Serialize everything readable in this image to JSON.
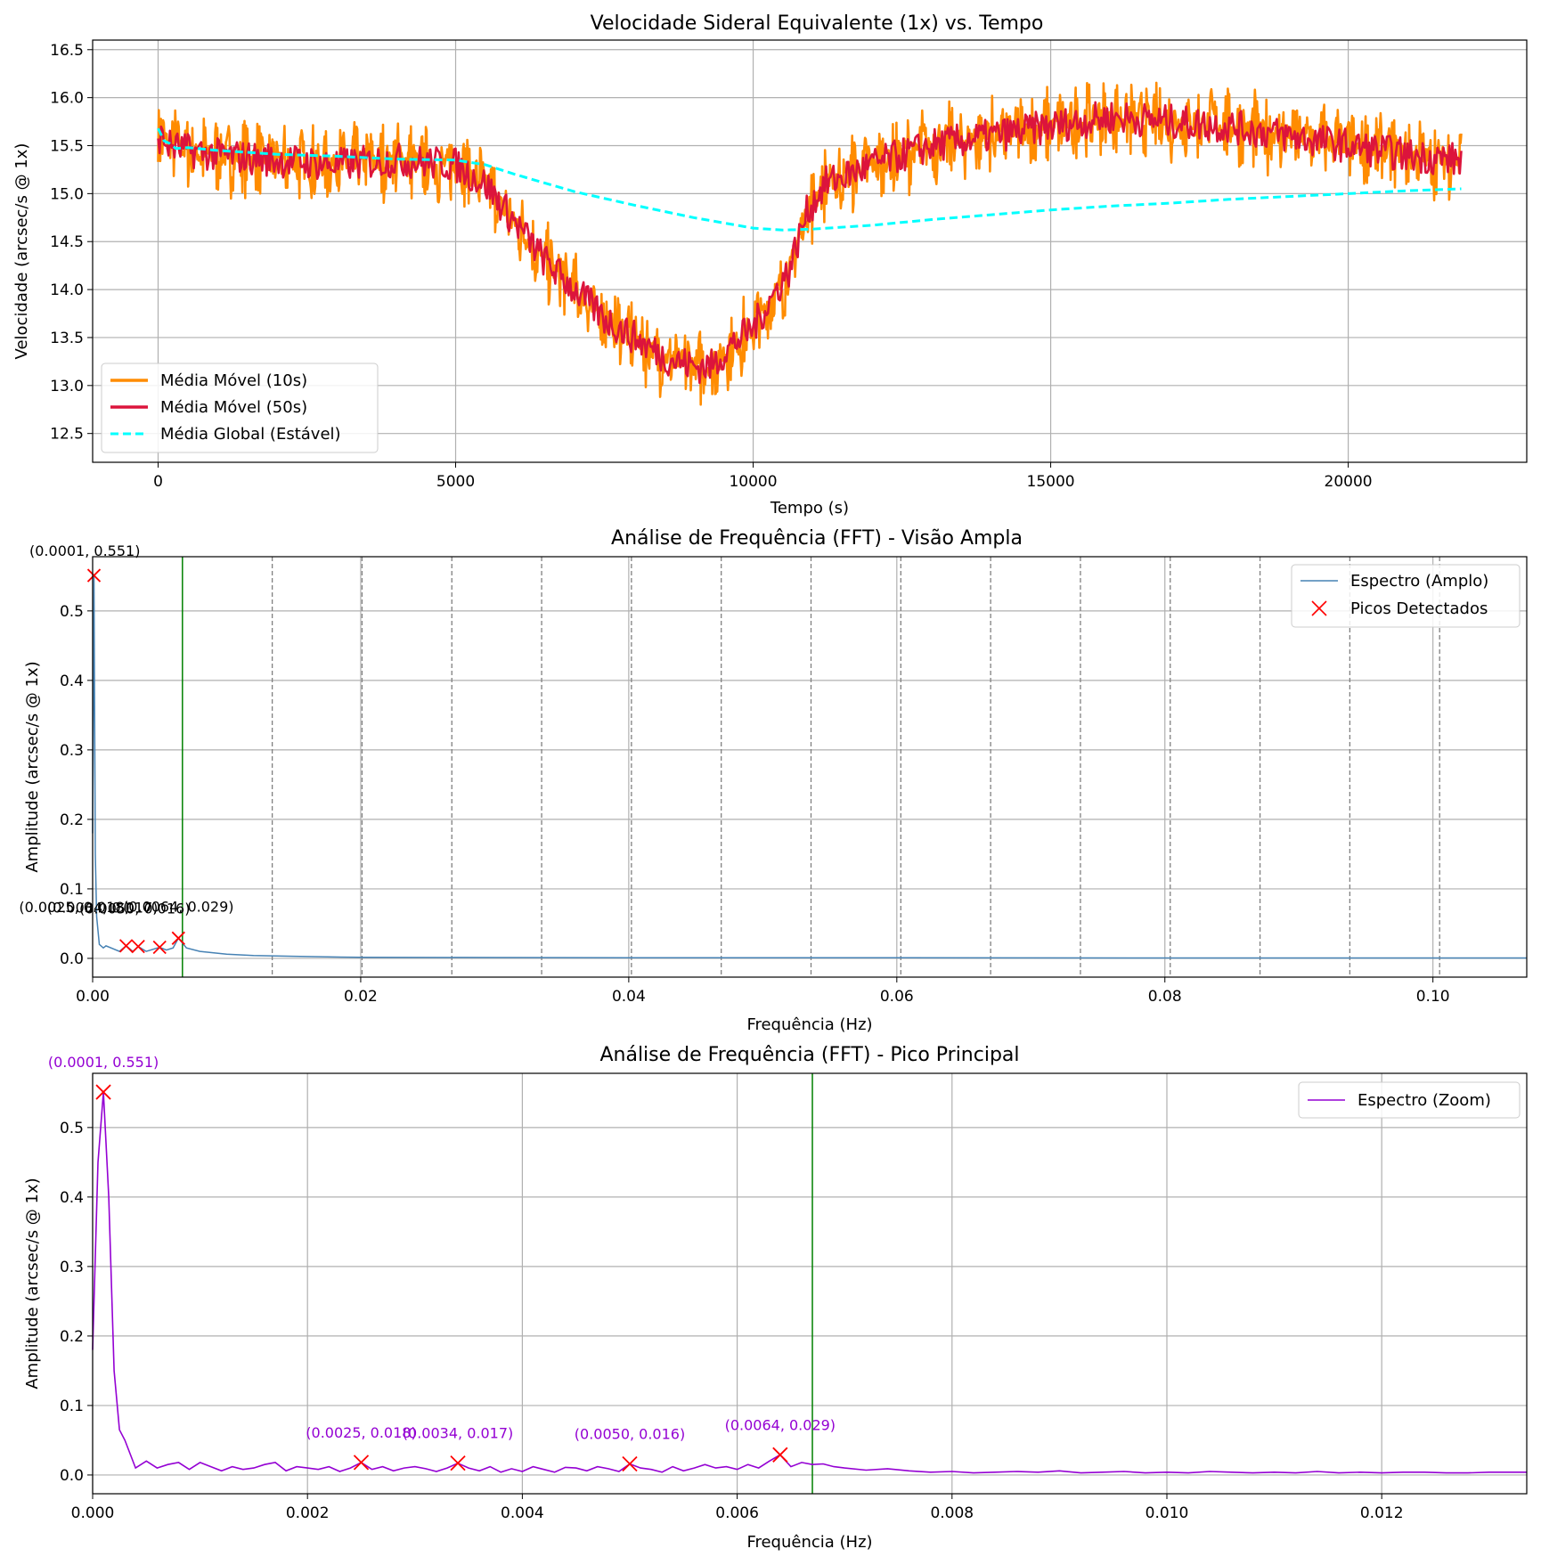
{
  "colors": {
    "ma10": "#ff8c00",
    "ma50": "#dc143c",
    "global": "#00ffff",
    "spectrum_wide": "#4682b4",
    "spectrum_zoom": "#9400d3",
    "peaks": "#ff0000",
    "green_line": "#008000",
    "dashed_lines": "#808080",
    "grid": "#b0b0b0",
    "annotation_wide": "#000000",
    "annotation_zoom": "#9400d3"
  },
  "chart_data": [
    {
      "type": "line",
      "title": "Velocidade Sideral Equivalente (1x) vs. Tempo",
      "xlabel": "Tempo (s)",
      "ylabel": "Velocidade (arcsec/s @ 1x)",
      "xlim": [
        -1100,
        23000
      ],
      "ylim": [
        12.2,
        16.6
      ],
      "xticks": [
        0,
        5000,
        10000,
        15000,
        20000
      ],
      "xtick_labels": [
        "0",
        "5000",
        "10000",
        "15000",
        "20000"
      ],
      "yticks": [
        12.5,
        13.0,
        13.5,
        14.0,
        14.5,
        15.0,
        15.5,
        16.0,
        16.5
      ],
      "ytick_labels": [
        "12.5",
        "13.0",
        "13.5",
        "14.0",
        "14.5",
        "15.0",
        "15.5",
        "16.0",
        "16.5"
      ],
      "grid": true,
      "legend_position": "lower-left",
      "trend": {
        "t": [
          0,
          200,
          500,
          1000,
          2000,
          3000,
          4000,
          5000,
          5500,
          6000,
          6500,
          7000,
          7500,
          8000,
          8500,
          9000,
          9300,
          9600,
          10000,
          10300,
          10600,
          10900,
          11200,
          12000,
          13000,
          14000,
          15000,
          16000,
          17000,
          18000,
          19000,
          20000,
          21000,
          21900
        ],
        "v": [
          15.6,
          15.5,
          15.45,
          15.4,
          15.35,
          15.3,
          15.35,
          15.3,
          15.1,
          14.7,
          14.3,
          14.0,
          13.7,
          13.5,
          13.3,
          13.2,
          13.2,
          13.4,
          13.6,
          13.9,
          14.2,
          14.8,
          15.1,
          15.3,
          15.5,
          15.6,
          15.7,
          15.8,
          15.75,
          15.7,
          15.6,
          15.5,
          15.4,
          15.35
        ]
      },
      "series": [
        {
          "name": "Média Móvel (10s)",
          "noise_amplitude": 0.45,
          "style": "solid"
        },
        {
          "name": "Média Móvel (50s)",
          "noise_amplitude": 0.18,
          "style": "solid"
        },
        {
          "name": "Média Global (Estável)",
          "style": "dashed",
          "x": [
            0,
            100,
            200,
            300,
            500,
            1000,
            2000,
            3000,
            4000,
            5000,
            5500,
            6000,
            7000,
            8000,
            9000,
            10000,
            10500,
            11000,
            12000,
            13000,
            14000,
            15000,
            16000,
            17000,
            18000,
            19000,
            20000,
            21000,
            21900
          ],
          "y": [
            15.68,
            15.55,
            15.52,
            15.47,
            15.48,
            15.45,
            15.41,
            15.39,
            15.36,
            15.35,
            15.3,
            15.2,
            15.02,
            14.88,
            14.75,
            14.64,
            14.62,
            14.63,
            14.67,
            14.73,
            14.78,
            14.83,
            14.87,
            14.9,
            14.94,
            14.97,
            15.0,
            15.03,
            15.05
          ]
        }
      ]
    },
    {
      "type": "line",
      "title": "Análise de Frequência (FFT) - Visão Ampla",
      "xlabel": "Frequência (Hz)",
      "ylabel": "Amplitude (arcsec/s @ 1x)",
      "xlim": [
        0,
        0.107
      ],
      "ylim": [
        -0.027,
        0.578
      ],
      "xticks": [
        0,
        0.02,
        0.04,
        0.06,
        0.08,
        0.1
      ],
      "xtick_labels": [
        "0.00",
        "0.02",
        "0.04",
        "0.06",
        "0.08",
        "0.10"
      ],
      "yticks": [
        0,
        0.1,
        0.2,
        0.3,
        0.4,
        0.5
      ],
      "ytick_labels": [
        "0.0",
        "0.1",
        "0.2",
        "0.3",
        "0.4",
        "0.5"
      ],
      "grid": true,
      "legend_position": "top-right",
      "green_line_x": 0.0067,
      "dashed_lines_x": [
        0.0134,
        0.0201,
        0.0268,
        0.0335,
        0.0402,
        0.0469,
        0.0536,
        0.0603,
        0.067,
        0.0737,
        0.0804,
        0.0871,
        0.0938,
        0.1005
      ],
      "series": [
        {
          "name": "Espectro (Amplo)",
          "x": [
            0,
            0.0001,
            0.0002,
            0.0003,
            0.0005,
            0.0008,
            0.001,
            0.002,
            0.0025,
            0.003,
            0.0034,
            0.004,
            0.005,
            0.0055,
            0.006,
            0.0064,
            0.007,
            0.008,
            0.01,
            0.012,
            0.015,
            0.018,
            0.02,
            0.03,
            0.04,
            0.05,
            0.06,
            0.07,
            0.08,
            0.09,
            0.1,
            0.107
          ],
          "y": [
            0.18,
            0.551,
            0.15,
            0.06,
            0.02,
            0.015,
            0.018,
            0.01,
            0.018,
            0.01,
            0.017,
            0.01,
            0.016,
            0.012,
            0.015,
            0.029,
            0.015,
            0.01,
            0.006,
            0.004,
            0.003,
            0.002,
            0.0015,
            0.0012,
            0.001,
            0.0009,
            0.0008,
            0.0007,
            0.0006,
            0.0006,
            0.0005,
            0.0005
          ]
        },
        {
          "name": "Picos Detectados",
          "x": [
            0.0001,
            0.0025,
            0.0034,
            0.005,
            0.0064
          ],
          "y": [
            0.551,
            0.018,
            0.017,
            0.016,
            0.029
          ]
        }
      ],
      "annotations": [
        {
          "x": 0.0001,
          "y": 0.551,
          "text": "(0.0001, 0.551)"
        },
        {
          "x": 0.0025,
          "y": 0.018,
          "text": "(0.0025, 0.018)"
        },
        {
          "x": 0.0034,
          "y": 0.017,
          "text": "(0.0034, 0.017)"
        },
        {
          "x": 0.005,
          "y": 0.016,
          "text": "(0.0050, 0.016)"
        },
        {
          "x": 0.0064,
          "y": 0.029,
          "text": "(0.0064, 0.029)"
        }
      ]
    },
    {
      "type": "line",
      "title": "Análise de Frequência (FFT) - Pico Principal",
      "xlabel": "Frequência (Hz)",
      "ylabel": "Amplitude (arcsec/s @ 1x)",
      "xlim": [
        0,
        0.01335
      ],
      "ylim": [
        -0.027,
        0.578
      ],
      "xticks": [
        0,
        0.002,
        0.004,
        0.006,
        0.008,
        0.01,
        0.012
      ],
      "xtick_labels": [
        "0.000",
        "0.002",
        "0.004",
        "0.006",
        "0.008",
        "0.010",
        "0.012"
      ],
      "yticks": [
        0,
        0.1,
        0.2,
        0.3,
        0.4,
        0.5
      ],
      "ytick_labels": [
        "0.0",
        "0.1",
        "0.2",
        "0.3",
        "0.4",
        "0.5"
      ],
      "grid": true,
      "legend_position": "top-right",
      "green_line_x": 0.0067,
      "series": [
        {
          "name": "Espectro (Zoom)",
          "x": [
            0,
            5e-05,
            0.0001,
            0.00015,
            0.0002,
            0.00025,
            0.0003,
            0.00035,
            0.0004,
            0.0005,
            0.0006,
            0.0007,
            0.0008,
            0.0009,
            0.001,
            0.0011,
            0.0012,
            0.0013,
            0.0014,
            0.0015,
            0.0016,
            0.0017,
            0.0018,
            0.0019,
            0.002,
            0.0021,
            0.0022,
            0.0023,
            0.0024,
            0.0025,
            0.0026,
            0.0027,
            0.0028,
            0.0029,
            0.003,
            0.0031,
            0.0032,
            0.0033,
            0.0034,
            0.0035,
            0.0036,
            0.0037,
            0.0038,
            0.0039,
            0.004,
            0.0041,
            0.0042,
            0.0043,
            0.0044,
            0.0045,
            0.0046,
            0.0047,
            0.0048,
            0.0049,
            0.005,
            0.0051,
            0.0052,
            0.0053,
            0.0054,
            0.0055,
            0.0056,
            0.0057,
            0.0058,
            0.0059,
            0.006,
            0.0061,
            0.0062,
            0.0063,
            0.0064,
            0.0065,
            0.0066,
            0.0067,
            0.0068,
            0.0069,
            0.007,
            0.0072,
            0.0074,
            0.0076,
            0.0078,
            0.008,
            0.0082,
            0.0084,
            0.0086,
            0.0088,
            0.009,
            0.0092,
            0.0094,
            0.0096,
            0.0098,
            0.01,
            0.0102,
            0.0104,
            0.0106,
            0.0108,
            0.011,
            0.0112,
            0.0114,
            0.0116,
            0.0118,
            0.012,
            0.0122,
            0.0124,
            0.0126,
            0.0128,
            0.013,
            0.01335
          ],
          "y": [
            0.18,
            0.45,
            0.551,
            0.4,
            0.15,
            0.065,
            0.05,
            0.03,
            0.01,
            0.02,
            0.01,
            0.015,
            0.018,
            0.008,
            0.018,
            0.012,
            0.006,
            0.012,
            0.008,
            0.01,
            0.015,
            0.018,
            0.006,
            0.012,
            0.01,
            0.008,
            0.012,
            0.005,
            0.01,
            0.018,
            0.008,
            0.012,
            0.006,
            0.01,
            0.012,
            0.009,
            0.005,
            0.01,
            0.017,
            0.01,
            0.006,
            0.012,
            0.004,
            0.009,
            0.005,
            0.012,
            0.008,
            0.004,
            0.011,
            0.01,
            0.006,
            0.012,
            0.009,
            0.005,
            0.016,
            0.01,
            0.008,
            0.004,
            0.012,
            0.006,
            0.01,
            0.015,
            0.01,
            0.012,
            0.008,
            0.015,
            0.01,
            0.02,
            0.029,
            0.012,
            0.018,
            0.015,
            0.016,
            0.012,
            0.01,
            0.007,
            0.009,
            0.006,
            0.004,
            0.005,
            0.003,
            0.004,
            0.005,
            0.004,
            0.006,
            0.003,
            0.004,
            0.005,
            0.003,
            0.004,
            0.003,
            0.005,
            0.004,
            0.003,
            0.004,
            0.003,
            0.005,
            0.003,
            0.004,
            0.003,
            0.004,
            0.004,
            0.003,
            0.003,
            0.004,
            0.004
          ]
        },
        {
          "name": "",
          "x": [
            0.0001,
            0.0025,
            0.0034,
            0.005,
            0.0064
          ],
          "y": [
            0.551,
            0.018,
            0.017,
            0.016,
            0.029
          ]
        }
      ],
      "annotations": [
        {
          "x": 0.0001,
          "y": 0.551,
          "text": "(0.0001, 0.551)"
        },
        {
          "x": 0.0025,
          "y": 0.018,
          "text": "(0.0025, 0.018)"
        },
        {
          "x": 0.0034,
          "y": 0.017,
          "text": "(0.0034, 0.017)"
        },
        {
          "x": 0.005,
          "y": 0.016,
          "text": "(0.0050, 0.016)"
        },
        {
          "x": 0.0064,
          "y": 0.029,
          "text": "(0.0064, 0.029)"
        }
      ]
    }
  ]
}
